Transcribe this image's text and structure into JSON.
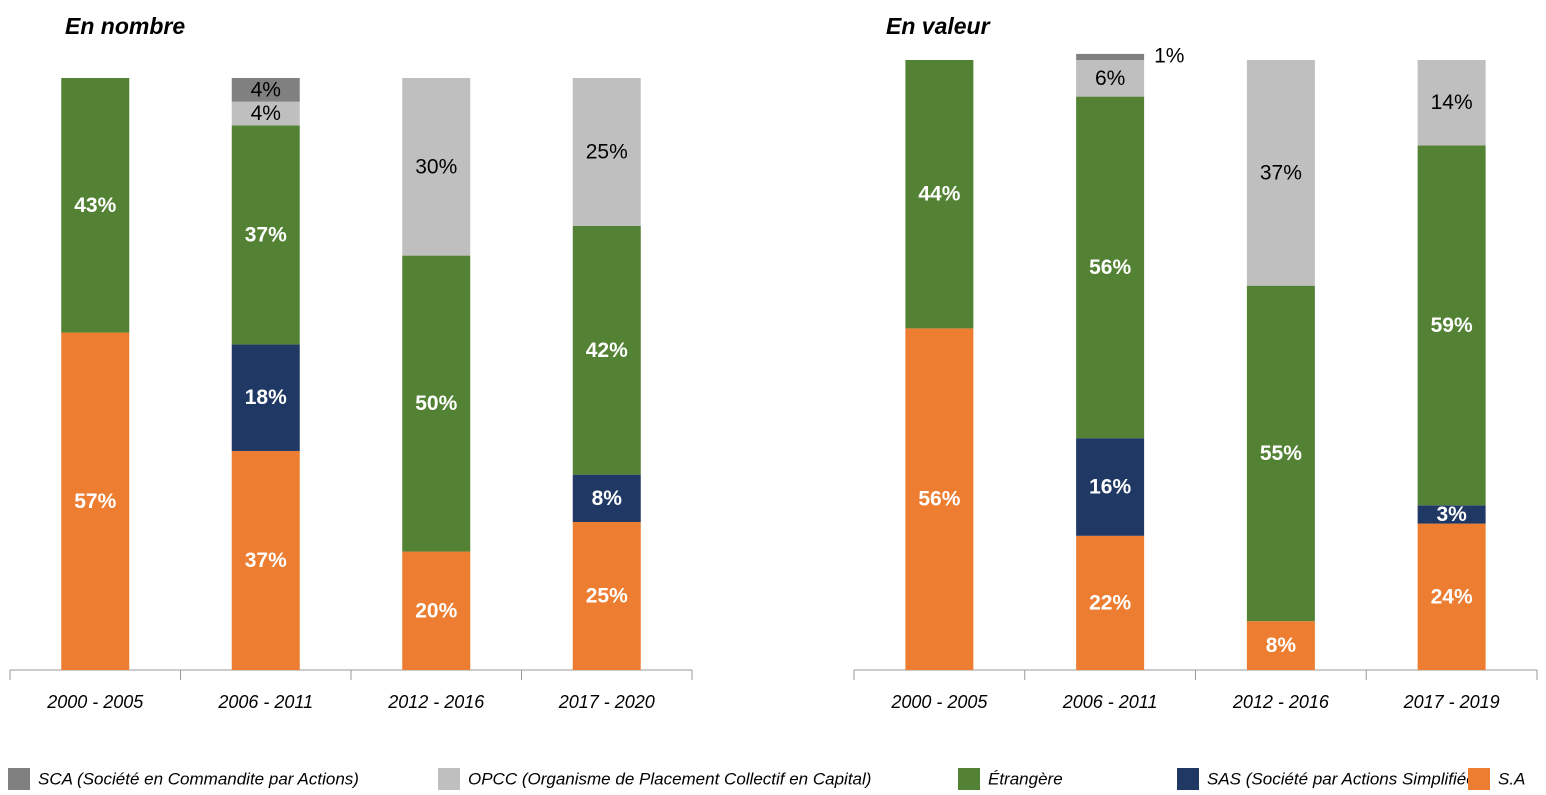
{
  "chart_data": [
    {
      "type": "bar",
      "stacked": true,
      "title": "En nombre",
      "categories": [
        "2000 - 2005",
        "2006 - 2011",
        "2012 - 2016",
        "2017 - 2020"
      ],
      "ylim": [
        0,
        100
      ],
      "series": [
        {
          "values": [
            57,
            37,
            20,
            25
          ],
          "value_labels": [
            "57%",
            "37%",
            "20%",
            "25%"
          ]
        },
        {
          "values": [
            null,
            18,
            null,
            8
          ],
          "value_labels": [
            null,
            "18%",
            null,
            "8%"
          ]
        },
        {
          "values": [
            43,
            37,
            50,
            42
          ],
          "value_labels": [
            "43%",
            "37%",
            "50%",
            "42%"
          ]
        },
        {
          "values": [
            null,
            4,
            30,
            25
          ],
          "value_labels": [
            null,
            "4%",
            "30%",
            "25%"
          ]
        },
        {
          "values": [
            null,
            4,
            null,
            null
          ],
          "value_labels": [
            null,
            "4%",
            null,
            null
          ]
        }
      ]
    },
    {
      "type": "bar",
      "stacked": true,
      "title": "En valeur",
      "categories": [
        "2000 - 2005",
        "2006 - 2011",
        "2012 - 2016",
        "2017 - 2019"
      ],
      "ylim": [
        0,
        100
      ],
      "series": [
        {
          "values": [
            56,
            22,
            8,
            24
          ],
          "value_labels": [
            "56%",
            "22%",
            "8%",
            "24%"
          ]
        },
        {
          "values": [
            null,
            16,
            null,
            3
          ],
          "value_labels": [
            null,
            "16%",
            null,
            "3%"
          ]
        },
        {
          "values": [
            44,
            56,
            55,
            59
          ],
          "value_labels": [
            "44%",
            "56%",
            "55%",
            "59%"
          ]
        },
        {
          "values": [
            null,
            6,
            37,
            14
          ],
          "value_labels": [
            null,
            "6%",
            "37%",
            "14%"
          ]
        },
        {
          "values": [
            null,
            1,
            null,
            null
          ],
          "value_labels": [
            null,
            "1%",
            null,
            null
          ]
        }
      ]
    }
  ],
  "legend": [
    {
      "name": "S.A",
      "color": "#ED7D31"
    },
    {
      "name": "SAS (Société par Actions Simplifiée)",
      "color": "#203864"
    },
    {
      "name": "Étrangère",
      "color": "#548235"
    },
    {
      "name": "OPCC (Organisme de Placement Collectif en Capital)",
      "color": "#BFBFBF"
    },
    {
      "name": "SCA (Société en Commandite par Actions)",
      "color": "#808080"
    }
  ]
}
